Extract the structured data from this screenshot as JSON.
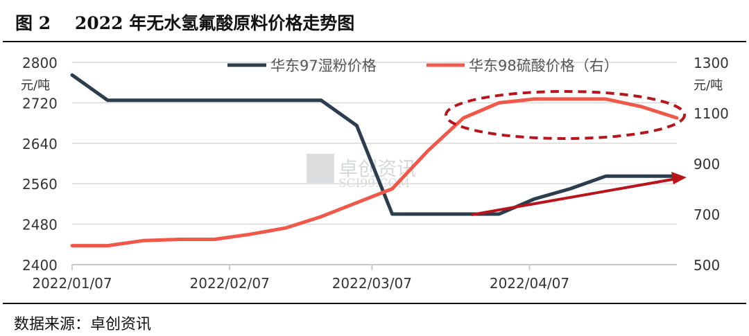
{
  "title": "图 2    2022 年无水氢氟酸原料价格走势图",
  "source": "数据来源：卓创资讯",
  "watermark": {
    "main": "卓创资讯",
    "sub": "SCI99.COM"
  },
  "colors": {
    "series1": "#2c3d4d",
    "series2": "#f0584a",
    "annotation": "#b8141b",
    "grid": "#d9d9d9"
  },
  "chart_data": {
    "type": "line",
    "x_ticks": [
      "2022/01/07",
      "2022/02/07",
      "2022/03/07",
      "2022/04/07"
    ],
    "x": [
      "2022/01/07",
      "2022/01/14",
      "2022/01/21",
      "2022/01/28",
      "2022/02/04",
      "2022/02/11",
      "2022/02/18",
      "2022/02/25",
      "2022/03/04",
      "2022/03/11",
      "2022/03/18",
      "2022/03/25",
      "2022/04/01",
      "2022/04/08",
      "2022/04/15",
      "2022/04/22",
      "2022/04/29",
      "2022/05/06"
    ],
    "series": [
      {
        "name": "华东97湿粉价格",
        "axis": "left",
        "values": [
          2775,
          2725,
          2725,
          2725,
          2725,
          2725,
          2725,
          2725,
          2675,
          2500,
          2500,
          2500,
          2500,
          2530,
          2550,
          2575,
          2575,
          2575
        ]
      },
      {
        "name": "华东98硫酸价格（右）",
        "axis": "right",
        "values": [
          575,
          575,
          595,
          600,
          600,
          620,
          645,
          690,
          745,
          800,
          950,
          1080,
          1140,
          1155,
          1155,
          1155,
          1125,
          1080
        ]
      }
    ],
    "left_axis": {
      "unit": "元/吨",
      "ylim": [
        2400,
        2800
      ],
      "ticks": [
        "2800",
        "2720",
        "2640",
        "2560",
        "2480",
        "2400"
      ]
    },
    "right_axis": {
      "unit": "元/吨",
      "ylim": [
        500,
        1300
      ],
      "ticks": [
        "1300",
        "1100",
        "900",
        "700",
        "500"
      ]
    },
    "grid": true,
    "legend_position": "top"
  }
}
